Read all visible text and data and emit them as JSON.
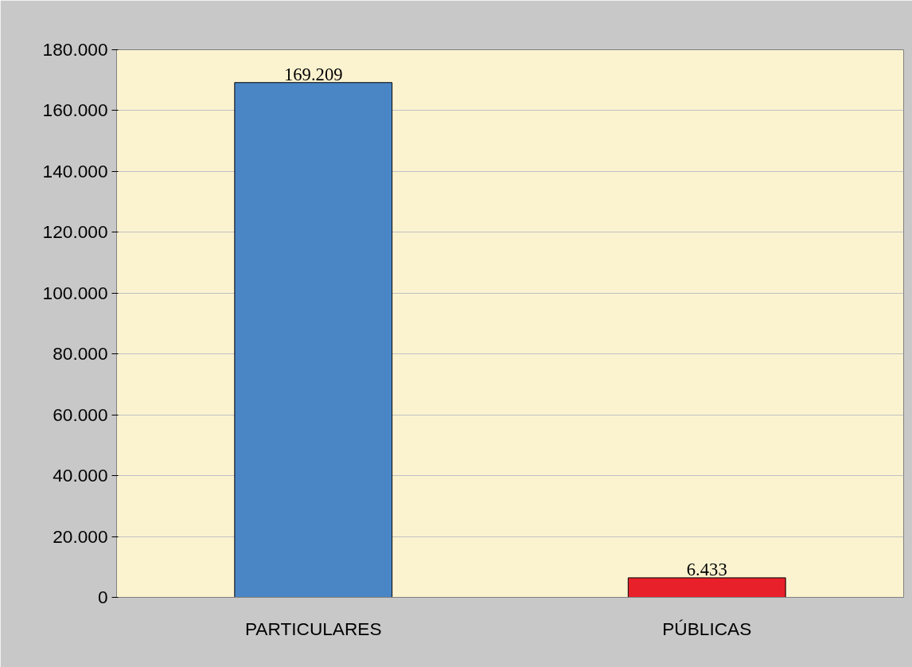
{
  "chart_data": {
    "type": "bar",
    "categories": [
      "PARTICULARES",
      "PÚBLICAS"
    ],
    "values": [
      169209,
      6433
    ],
    "colors": [
      "#4a86c5",
      "#e8202a"
    ],
    "value_labels": [
      "169.209",
      "6.433"
    ],
    "ylim": [
      0,
      180000
    ],
    "yticks": [
      {
        "value": 0,
        "label": "0"
      },
      {
        "value": 20000,
        "label": "20.000"
      },
      {
        "value": 40000,
        "label": "40.000"
      },
      {
        "value": 60000,
        "label": "60.000"
      },
      {
        "value": 80000,
        "label": "80.000"
      },
      {
        "value": 100000,
        "label": "100.000"
      },
      {
        "value": 120000,
        "label": "120.000"
      },
      {
        "value": 140000,
        "label": "140.000"
      },
      {
        "value": 160000,
        "label": "160.000"
      },
      {
        "value": 180000,
        "label": "180.000"
      }
    ],
    "grid": "y"
  }
}
